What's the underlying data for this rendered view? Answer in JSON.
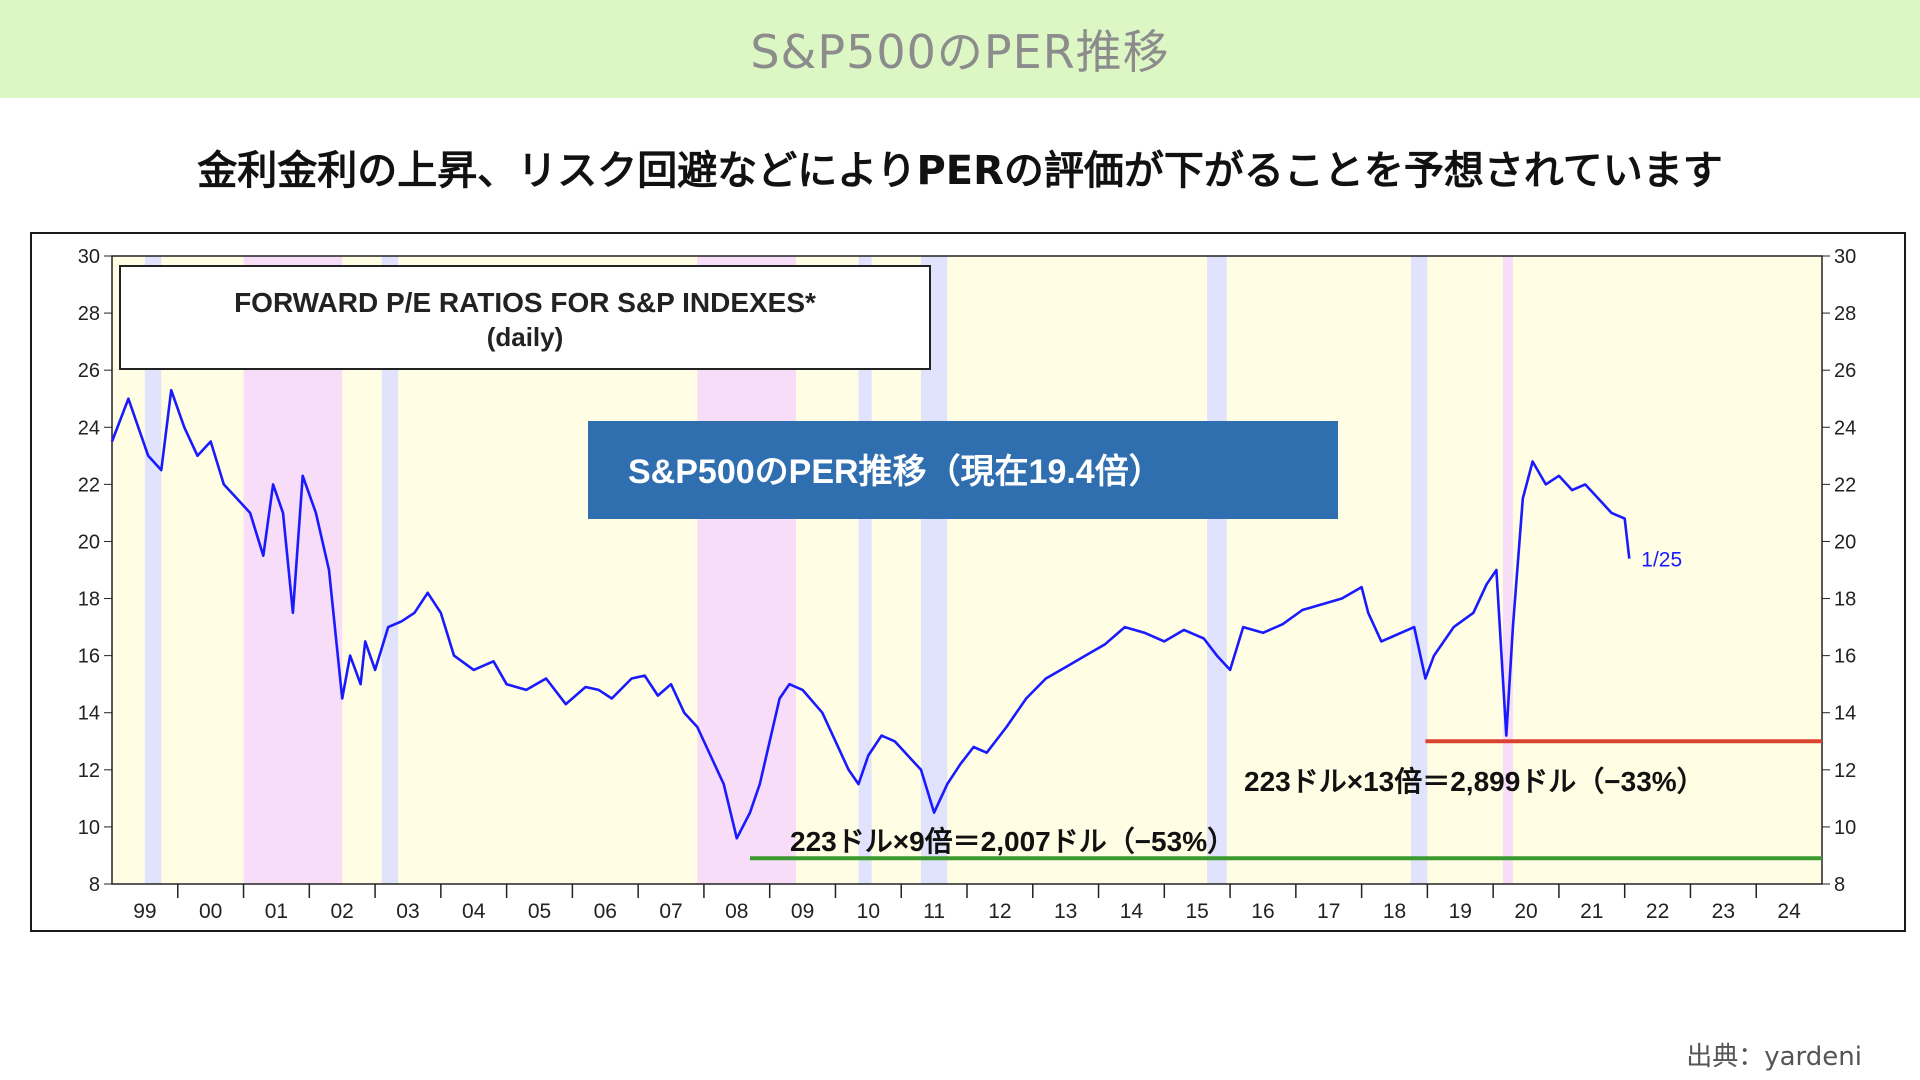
{
  "page": {
    "title": "S&P500のPER推移",
    "subtitle": "金利金利の上昇、リスク回避などによりPERの評価が下がることを予想されています",
    "source": "出典：yardeni"
  },
  "colors": {
    "title_bg": "#dcf7c4",
    "plot_bg": "#fffde3",
    "series": "#1a1aff",
    "recession_shade": "#f7ddf7",
    "stress_shade": "#e0e3fb",
    "target_13x": "#d94430",
    "target_9x": "#3a9a2f",
    "overlay_box": "#2f6fb0"
  },
  "chart_data": {
    "type": "line",
    "title": "FORWARD P/E RATIOS FOR S&P INDEXES*",
    "subtitle": "(daily)",
    "overlay_label": "S&P500のPER推移（現在19.4倍）",
    "end_label": "1/25",
    "x_range": [
      1999.0,
      2025.0
    ],
    "ylim": [
      8,
      30
    ],
    "y_ticks": [
      8,
      10,
      12,
      14,
      16,
      18,
      20,
      22,
      24,
      26,
      28,
      30
    ],
    "x_tick_labels": [
      "99",
      "00",
      "01",
      "02",
      "03",
      "04",
      "05",
      "06",
      "07",
      "08",
      "09",
      "10",
      "11",
      "12",
      "13",
      "14",
      "15",
      "16",
      "17",
      "18",
      "19",
      "20",
      "21",
      "22",
      "23",
      "24"
    ],
    "shaded_periods": [
      {
        "kind": "recession",
        "start": 2001.0,
        "end": 2002.5
      },
      {
        "kind": "recession",
        "start": 2007.9,
        "end": 2009.4
      },
      {
        "kind": "recession",
        "start": 2020.15,
        "end": 2020.3
      },
      {
        "kind": "stress",
        "start": 1999.5,
        "end": 1999.75
      },
      {
        "kind": "stress",
        "start": 2003.1,
        "end": 2003.35
      },
      {
        "kind": "stress",
        "start": 2010.35,
        "end": 2010.55
      },
      {
        "kind": "stress",
        "start": 2011.3,
        "end": 2011.7
      },
      {
        "kind": "stress",
        "start": 2015.65,
        "end": 2015.95
      },
      {
        "kind": "stress",
        "start": 2018.75,
        "end": 2019.0
      }
    ],
    "series": [
      {
        "name": "",
        "x": [
          1999.0,
          1999.25,
          1999.4,
          1999.55,
          1999.75,
          1999.9,
          2000.1,
          2000.3,
          2000.5,
          2000.7,
          2000.9,
          2001.1,
          2001.3,
          2001.45,
          2001.6,
          2001.75,
          2001.9,
          2002.1,
          2002.3,
          2002.5,
          2002.62,
          2002.78,
          2002.85,
          2003.0,
          2003.2,
          2003.4,
          2003.6,
          2003.8,
          2004.0,
          2004.2,
          2004.5,
          2004.8,
          2005.0,
          2005.3,
          2005.6,
          2005.9,
          2006.2,
          2006.4,
          2006.6,
          2006.9,
          2007.1,
          2007.3,
          2007.5,
          2007.7,
          2007.9,
          2008.1,
          2008.3,
          2008.5,
          2008.7,
          2008.85,
          2009.0,
          2009.15,
          2009.3,
          2009.5,
          2009.8,
          2010.0,
          2010.2,
          2010.35,
          2010.5,
          2010.7,
          2010.9,
          2011.1,
          2011.3,
          2011.5,
          2011.7,
          2011.9,
          2012.1,
          2012.3,
          2012.6,
          2012.9,
          2013.2,
          2013.5,
          2013.8,
          2014.1,
          2014.4,
          2014.7,
          2015.0,
          2015.3,
          2015.6,
          2015.8,
          2016.0,
          2016.2,
          2016.5,
          2016.8,
          2017.1,
          2017.4,
          2017.7,
          2018.0,
          2018.1,
          2018.3,
          2018.6,
          2018.8,
          2018.97,
          2019.1,
          2019.4,
          2019.7,
          2019.9,
          2020.05,
          2020.2,
          2020.3,
          2020.45,
          2020.6,
          2020.8,
          2021.0,
          2021.2,
          2021.4,
          2021.6,
          2021.8,
          2022.0,
          2022.07
        ],
        "values": [
          23.5,
          25.0,
          24.0,
          23.0,
          22.5,
          25.3,
          24.0,
          23.0,
          23.5,
          22.0,
          21.5,
          21.0,
          19.5,
          22.0,
          21.0,
          17.5,
          22.3,
          21.0,
          19.0,
          14.5,
          16.0,
          15.0,
          16.5,
          15.5,
          17.0,
          17.2,
          17.5,
          18.2,
          17.5,
          16.0,
          15.5,
          15.8,
          15.0,
          14.8,
          15.2,
          14.3,
          14.9,
          14.8,
          14.5,
          15.2,
          15.3,
          14.6,
          15.0,
          14.0,
          13.5,
          12.5,
          11.5,
          9.6,
          10.5,
          11.5,
          13.0,
          14.5,
          15.0,
          14.8,
          14.0,
          13.0,
          12.0,
          11.5,
          12.5,
          13.2,
          13.0,
          12.5,
          12.0,
          10.5,
          11.5,
          12.2,
          12.8,
          12.6,
          13.5,
          14.5,
          15.2,
          15.6,
          16.0,
          16.4,
          17.0,
          16.8,
          16.5,
          16.9,
          16.6,
          16.0,
          15.5,
          17.0,
          16.8,
          17.1,
          17.6,
          17.8,
          18.0,
          18.4,
          17.5,
          16.5,
          16.8,
          17.0,
          15.2,
          16.0,
          17.0,
          17.5,
          18.5,
          19.0,
          13.2,
          17.0,
          21.5,
          22.8,
          22.0,
          22.3,
          21.8,
          22.0,
          21.5,
          21.0,
          20.8,
          19.4
        ]
      }
    ],
    "reference_lines": [
      {
        "value": 13,
        "x_start": 2018.97,
        "x_end": 2025.0,
        "label": "223ドル×13倍＝2,899ドル（−33%）"
      },
      {
        "value": 8.9,
        "x_start": 2008.7,
        "x_end": 2025.0,
        "label": "223ドル×9倍＝2,007ドル（−53%）"
      }
    ]
  }
}
